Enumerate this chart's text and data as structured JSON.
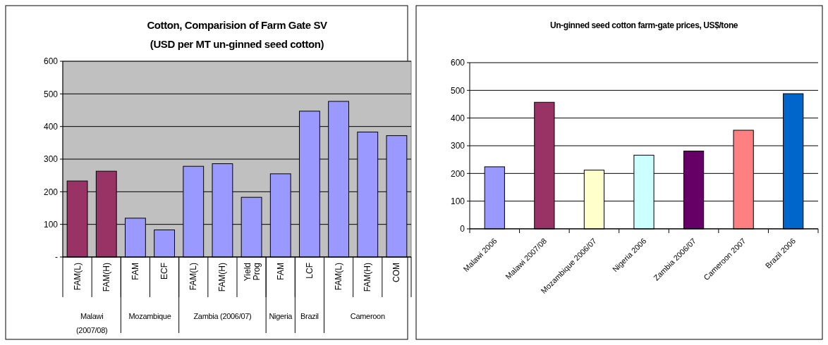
{
  "chart_data": [
    {
      "type": "bar",
      "title": "Cotton, Comparision of Farm Gate SV\n(USD per MT un-ginned seed cotton)",
      "categories": [
        "FAM(L)",
        "FAM(H)",
        "FAM",
        "ECF",
        "FAM(L)",
        "FAM(H)",
        "Yield Prog",
        "FAM",
        "LCF",
        "FAM(L)",
        "FAM(H)",
        "COM"
      ],
      "values": [
        233,
        263,
        119,
        83,
        278,
        286,
        183,
        255,
        447,
        477,
        383,
        372
      ],
      "colors": [
        "#993366",
        "#993366",
        "#9999ff",
        "#9999ff",
        "#9999ff",
        "#9999ff",
        "#9999ff",
        "#9999ff",
        "#9999ff",
        "#9999ff",
        "#9999ff",
        "#9999ff"
      ],
      "ylim": [
        0,
        600
      ],
      "yticks": [
        {
          "value": 0,
          "label": "-"
        },
        100,
        200,
        300,
        400,
        500,
        600
      ],
      "grid": "y",
      "annotations": [
        "Malawi (2007/08)",
        "Mozambique",
        "Zambia (2006/07)",
        "Nigeria",
        "Brazil",
        "Cameroon"
      ]
    },
    {
      "type": "bar",
      "title": "Un-ginned seed cotton farm-gate prices, US$/tone",
      "categories": [
        "Malawi 2006",
        "Malawi 2007/08",
        "Mozambique 2006/07",
        "Nigeria 2006",
        "Zambia 2006/07",
        "Cameroon 2007",
        "Brazil 2006"
      ],
      "values": [
        224,
        457,
        212,
        266,
        281,
        356,
        488
      ],
      "colors": [
        "#9999ff",
        "#993366",
        "#ffffcc",
        "#ccffff",
        "#660066",
        "#ff8080",
        "#0066cc"
      ],
      "ylim": [
        0,
        600
      ],
      "yticks": [
        0,
        100,
        200,
        300,
        400,
        500,
        600
      ],
      "grid": "y"
    }
  ]
}
